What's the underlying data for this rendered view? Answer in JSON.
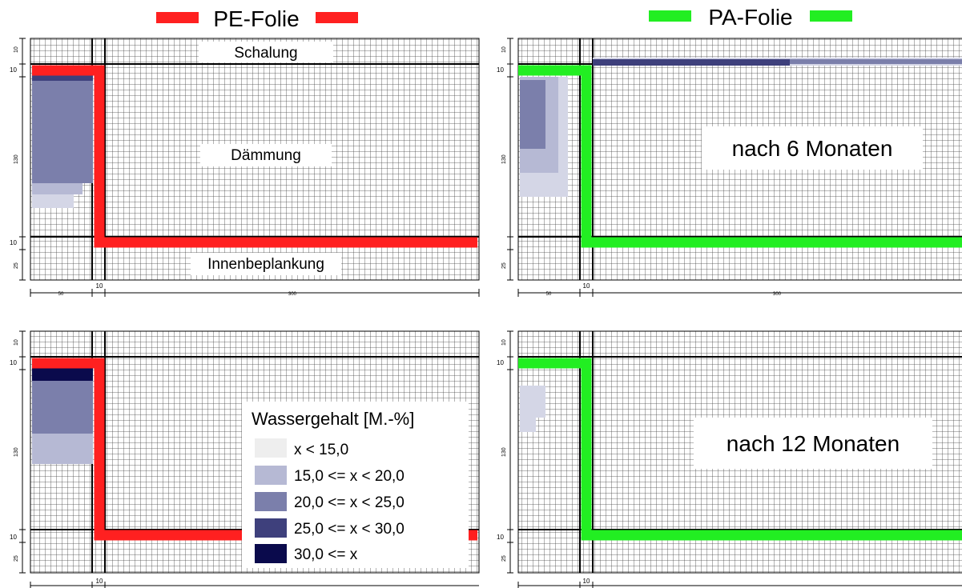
{
  "headers": {
    "left": {
      "label": "PE-Folie",
      "color": "#ff2020"
    },
    "right": {
      "label": "PA-Folie",
      "color": "#22ee22"
    }
  },
  "region_labels": {
    "formwork": "Schalung",
    "insulation": "Dämmung",
    "inner_boarding": "Innenbeplankung"
  },
  "time_labels": {
    "six_months": "nach 6 Monaten",
    "twelve_months": "nach 12 Monaten"
  },
  "dimensions": {
    "vertical": [
      "10",
      "130",
      "10",
      "25"
    ],
    "top_tick": "10",
    "horizontal": [
      "50",
      "10",
      "300"
    ]
  },
  "legend": {
    "title": "Wassergehalt [M.-%]",
    "items": [
      {
        "label": "x < 15,0",
        "color": "#eeeeee"
      },
      {
        "label": "15,0 <= x < 20,0",
        "color": "#b6b9d4"
      },
      {
        "label": "20,0 <= x < 25,0",
        "color": "#7b7fab"
      },
      {
        "label": "25,0 <= x < 30,0",
        "color": "#3e407c"
      },
      {
        "label": "30,0 <= x",
        "color": "#0a0a4c"
      }
    ]
  }
}
